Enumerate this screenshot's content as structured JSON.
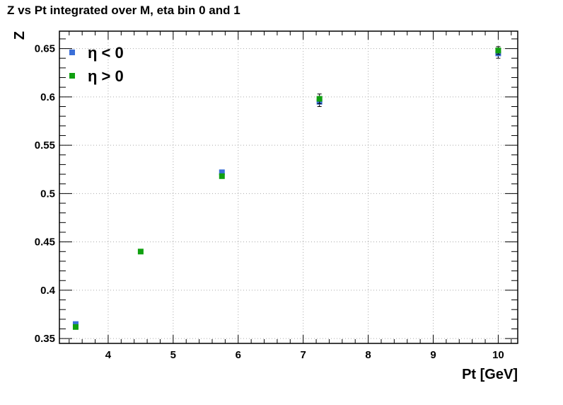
{
  "chart_data": {
    "type": "scatter",
    "title": "Z vs Pt integrated over M, eta bin 0 and 1",
    "xlabel": "Pt [GeV]",
    "ylabel": "Z",
    "xlim": [
      3.25,
      10.3
    ],
    "ylim": [
      0.345,
      0.668
    ],
    "xticks": [
      "4",
      "5",
      "6",
      "7",
      "8",
      "9",
      "10"
    ],
    "yticks": [
      "0.35",
      "0.4",
      "0.45",
      "0.5",
      "0.55",
      "0.6",
      "0.65"
    ],
    "grid": true,
    "legend_position": "top-left",
    "series": [
      {
        "name": "η < 0",
        "color": "#3b6fd8",
        "points": [
          {
            "x": 3.5,
            "y": 0.365,
            "err": 0.002
          },
          {
            "x": 5.75,
            "y": 0.522,
            "err": 0.002
          },
          {
            "x": 7.25,
            "y": 0.595,
            "err": 0.005
          },
          {
            "x": 10.0,
            "y": 0.645,
            "err": 0.005
          }
        ]
      },
      {
        "name": "η > 0",
        "color": "#10a010",
        "points": [
          {
            "x": 3.5,
            "y": 0.362,
            "err": 0.002
          },
          {
            "x": 4.5,
            "y": 0.44,
            "err": 0.002
          },
          {
            "x": 5.75,
            "y": 0.518,
            "err": 0.002
          },
          {
            "x": 7.25,
            "y": 0.598,
            "err": 0.005
          },
          {
            "x": 10.0,
            "y": 0.648,
            "err": 0.004
          }
        ]
      }
    ]
  }
}
